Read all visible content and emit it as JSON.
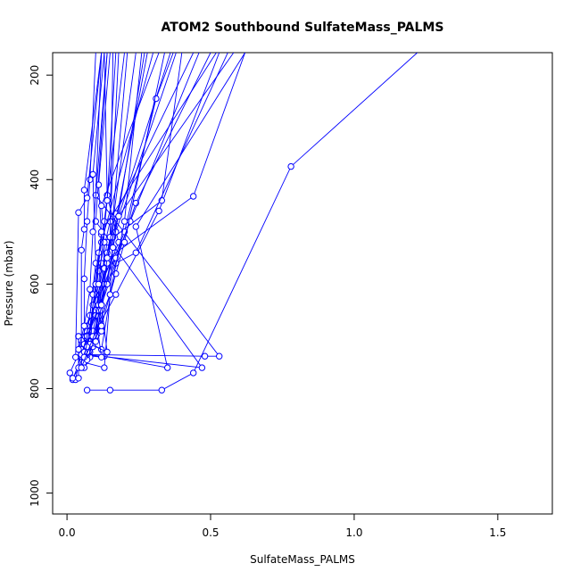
{
  "chart_data": {
    "type": "line",
    "title": "ATOM2 Southbound SulfateMass_PALMS",
    "xlabel": "SulfateMass_PALMS",
    "ylabel": "Pressure (mbar)",
    "xlim": [
      -0.05,
      1.69
    ],
    "ylim": [
      1040,
      157
    ],
    "y_reversed": true,
    "x_ticks": [
      0.0,
      0.5,
      1.0,
      1.5
    ],
    "x_tick_labels": [
      "0.0",
      "0.5",
      "1.0",
      "1.5"
    ],
    "y_ticks": [
      200,
      400,
      600,
      800,
      1000
    ],
    "y_tick_labels": [
      "200",
      "400",
      "600",
      "800",
      "1000"
    ],
    "grid": false,
    "series_color": "#0000ff",
    "series": [
      {
        "points": [
          [
            0.07,
            803
          ],
          [
            0.15,
            803
          ],
          [
            0.33,
            803
          ],
          [
            0.44,
            770
          ],
          [
            0.78,
            375
          ],
          [
            1.22,
            157
          ]
        ]
      },
      {
        "points": [
          [
            0.02,
            783
          ],
          [
            0.05,
            738
          ],
          [
            0.13,
            738
          ],
          [
            0.35,
            760
          ],
          [
            0.24,
            490
          ],
          [
            0.62,
            157
          ]
        ]
      },
      {
        "points": [
          [
            0.01,
            770
          ],
          [
            0.05,
            722
          ],
          [
            0.09,
            700
          ],
          [
            0.17,
            620
          ],
          [
            0.32,
            460
          ],
          [
            0.53,
            157
          ]
        ]
      },
      {
        "points": [
          [
            0.03,
            783
          ],
          [
            0.05,
            722
          ],
          [
            0.1,
            690
          ],
          [
            0.12,
            560
          ],
          [
            0.44,
            432
          ],
          [
            0.62,
            157
          ]
        ]
      },
      {
        "points": [
          [
            0.06,
            750
          ],
          [
            0.07,
            705
          ],
          [
            0.1,
            650
          ],
          [
            0.14,
            520
          ],
          [
            0.33,
            440
          ],
          [
            0.4,
            157
          ]
        ]
      },
      {
        "points": [
          [
            0.04,
            780
          ],
          [
            0.04,
            700
          ],
          [
            0.12,
            725
          ],
          [
            0.17,
            560
          ],
          [
            0.24,
            540
          ],
          [
            0.56,
            157
          ]
        ]
      },
      {
        "points": [
          [
            0.05,
            738
          ],
          [
            0.07,
            735
          ],
          [
            0.47,
            760
          ],
          [
            0.1,
            480
          ],
          [
            0.14,
            157
          ]
        ]
      },
      {
        "points": [
          [
            0.02,
            780
          ],
          [
            0.07,
            735
          ],
          [
            0.48,
            738
          ],
          [
            0.53,
            738
          ],
          [
            0.1,
            430
          ],
          [
            0.12,
            157
          ]
        ]
      },
      {
        "points": [
          [
            0.08,
            722
          ],
          [
            0.07,
            680
          ],
          [
            0.13,
            600
          ],
          [
            0.16,
            470
          ],
          [
            0.21,
            157
          ]
        ]
      },
      {
        "points": [
          [
            0.04,
            700
          ],
          [
            0.08,
            690
          ],
          [
            0.11,
            575
          ],
          [
            0.15,
            480
          ],
          [
            0.18,
            157
          ]
        ]
      },
      {
        "points": [
          [
            0.05,
            735
          ],
          [
            0.12,
            740
          ],
          [
            0.1,
            660
          ],
          [
            0.14,
            540
          ],
          [
            0.36,
            157
          ]
        ]
      },
      {
        "points": [
          [
            0.07,
            720
          ],
          [
            0.09,
            690
          ],
          [
            0.11,
            640
          ],
          [
            0.17,
            465
          ],
          [
            0.44,
            157
          ]
        ]
      },
      {
        "points": [
          [
            0.08,
            710
          ],
          [
            0.12,
            686
          ],
          [
            0.1,
            600
          ],
          [
            0.12,
            520
          ],
          [
            0.3,
            157
          ]
        ]
      },
      {
        "points": [
          [
            0.06,
            750
          ],
          [
            0.13,
            760
          ],
          [
            0.15,
            620
          ],
          [
            0.16,
            510
          ],
          [
            0.28,
            157
          ]
        ]
      },
      {
        "points": [
          [
            0.08,
            730
          ],
          [
            0.09,
            700
          ],
          [
            0.12,
            640
          ],
          [
            0.24,
            445
          ],
          [
            0.5,
            157
          ]
        ]
      },
      {
        "points": [
          [
            0.05,
            708
          ],
          [
            0.08,
            660
          ],
          [
            0.1,
            560
          ],
          [
            0.09,
            390
          ],
          [
            0.13,
            157
          ]
        ]
      },
      {
        "points": [
          [
            0.06,
            715
          ],
          [
            0.06,
            590
          ],
          [
            0.07,
            480
          ],
          [
            0.08,
            400
          ],
          [
            0.1,
            157
          ]
        ]
      },
      {
        "points": [
          [
            0.07,
            730
          ],
          [
            0.1,
            620
          ],
          [
            0.12,
            505
          ],
          [
            0.11,
            410
          ],
          [
            0.15,
            157
          ]
        ]
      },
      {
        "points": [
          [
            0.05,
            725
          ],
          [
            0.05,
            535
          ],
          [
            0.06,
            495
          ],
          [
            0.06,
            420
          ],
          [
            0.12,
            157
          ]
        ]
      },
      {
        "points": [
          [
            0.08,
            740
          ],
          [
            0.09,
            640
          ],
          [
            0.18,
            520
          ],
          [
            0.14,
            430
          ],
          [
            0.13,
            157
          ]
        ]
      },
      {
        "points": [
          [
            0.06,
            760
          ],
          [
            0.12,
            690
          ],
          [
            0.13,
            520
          ],
          [
            0.12,
            450
          ],
          [
            0.32,
            157
          ]
        ]
      },
      {
        "points": [
          [
            0.09,
            720
          ],
          [
            0.13,
            600
          ],
          [
            0.2,
            500
          ],
          [
            0.31,
            245
          ],
          [
            0.37,
            157
          ]
        ]
      },
      {
        "points": [
          [
            0.07,
            700
          ],
          [
            0.11,
            650
          ],
          [
            0.17,
            550
          ],
          [
            0.22,
            480
          ],
          [
            0.46,
            157
          ]
        ]
      },
      {
        "points": [
          [
            0.1,
            700
          ],
          [
            0.13,
            570
          ],
          [
            0.15,
            510
          ],
          [
            0.16,
            157
          ]
        ]
      },
      {
        "points": [
          [
            0.04,
            725
          ],
          [
            0.06,
            680
          ],
          [
            0.08,
            610
          ],
          [
            0.09,
            500
          ],
          [
            0.14,
            157
          ]
        ]
      },
      {
        "points": [
          [
            0.05,
            735
          ],
          [
            0.07,
            700
          ],
          [
            0.14,
            600
          ],
          [
            0.17,
            500
          ],
          [
            0.38,
            157
          ]
        ]
      },
      {
        "points": [
          [
            0.07,
            745
          ],
          [
            0.1,
            700
          ],
          [
            0.12,
            650
          ],
          [
            0.16,
            530
          ],
          [
            0.27,
            157
          ]
        ]
      },
      {
        "points": [
          [
            0.06,
            730
          ],
          [
            0.09,
            620
          ],
          [
            0.11,
            540
          ],
          [
            0.13,
            480
          ],
          [
            0.2,
            157
          ]
        ]
      },
      {
        "points": [
          [
            0.08,
            715
          ],
          [
            0.14,
            730
          ],
          [
            0.12,
            640
          ],
          [
            0.14,
            560
          ],
          [
            0.24,
            157
          ]
        ]
      },
      {
        "points": [
          [
            0.03,
            740
          ],
          [
            0.04,
            463
          ],
          [
            0.07,
            435
          ],
          [
            0.12,
            157
          ]
        ]
      },
      {
        "points": [
          [
            0.04,
            760
          ],
          [
            0.07,
            720
          ],
          [
            0.1,
            600
          ],
          [
            0.12,
            500
          ],
          [
            0.52,
            157
          ]
        ]
      },
      {
        "points": [
          [
            0.09,
            700
          ],
          [
            0.12,
            680
          ],
          [
            0.17,
            580
          ],
          [
            0.2,
            520
          ],
          [
            0.34,
            157
          ]
        ]
      },
      {
        "points": [
          [
            0.1,
            710
          ],
          [
            0.12,
            640
          ],
          [
            0.14,
            550
          ],
          [
            0.18,
            470
          ],
          [
            0.58,
            157
          ]
        ]
      },
      {
        "points": [
          [
            0.06,
            740
          ],
          [
            0.11,
            600
          ],
          [
            0.14,
            440
          ],
          [
            0.17,
            157
          ]
        ]
      },
      {
        "points": [
          [
            0.05,
            760
          ],
          [
            0.15,
            620
          ],
          [
            0.2,
            480
          ],
          [
            0.26,
            157
          ]
        ]
      }
    ]
  }
}
